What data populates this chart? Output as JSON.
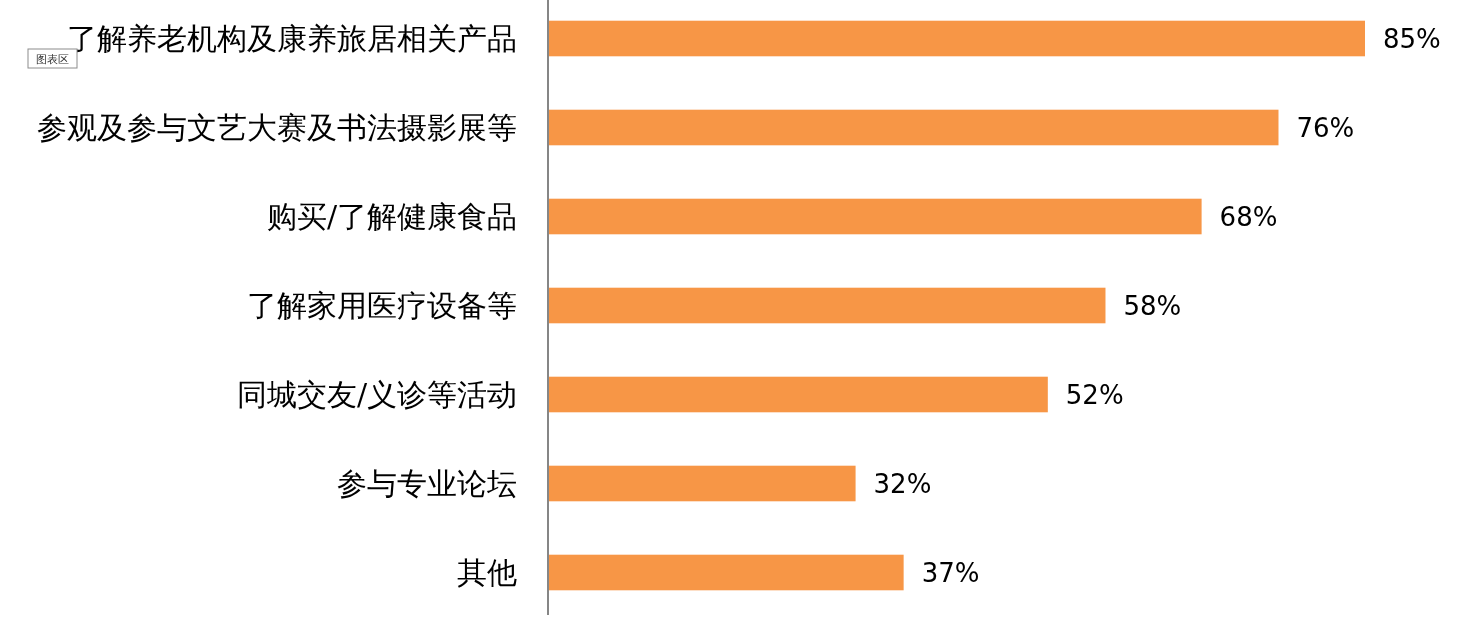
{
  "chart_data": {
    "type": "bar",
    "orientation": "horizontal",
    "categories": [
      "了解养老机构及康养旅居相关产品",
      "参观及参与文艺大赛及书法摄影展等",
      "购买/了解健康食品",
      "了解家用医疗设备等",
      "同城交友/义诊等活动",
      "参与专业论坛",
      "其他"
    ],
    "values": [
      85,
      76,
      68,
      58,
      52,
      32,
      37
    ],
    "value_labels": [
      "85%",
      "76%",
      "68%",
      "58%",
      "52%",
      "32%",
      "37%"
    ],
    "color": "#f79646",
    "annotations": [
      "图表区"
    ]
  }
}
